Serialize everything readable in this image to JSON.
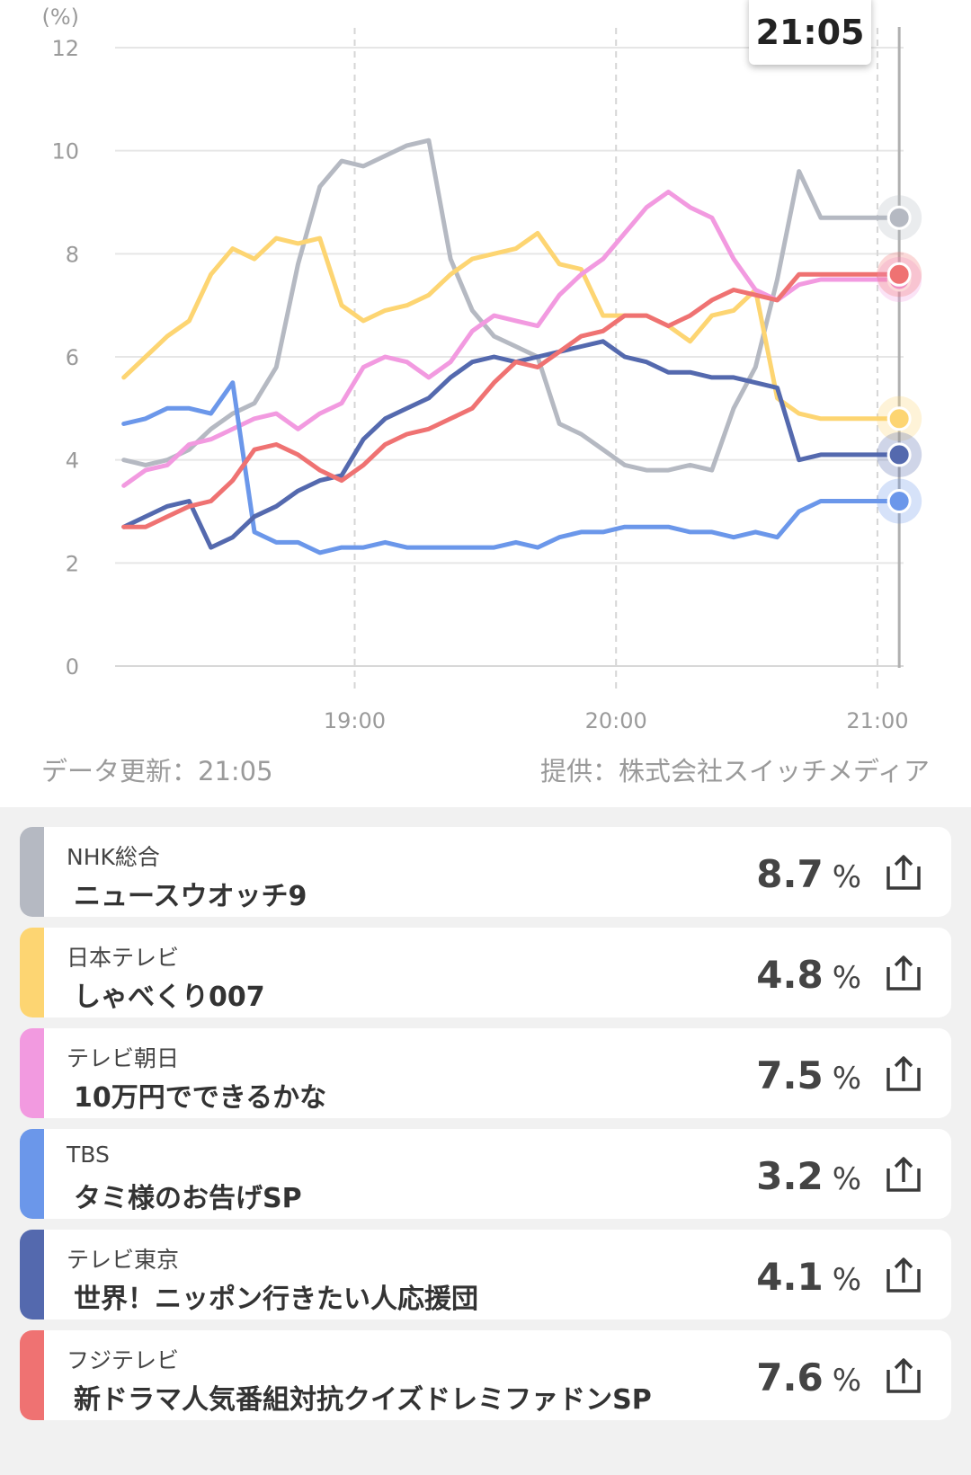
{
  "tooltip_time": "21:05",
  "footer": {
    "updated": "データ更新：21:05",
    "provider": "提供：株式会社スイッチメディア"
  },
  "chart_data": {
    "type": "line",
    "ylabel": "(%)",
    "ylim": [
      0,
      12
    ],
    "yticks": [
      "0",
      "2",
      "4",
      "6",
      "8",
      "10",
      "12"
    ],
    "xlim_minutes": [
      1085,
      1266
    ],
    "xticks": [
      {
        "label": "19:00",
        "minute": 1140
      },
      {
        "label": "20:00",
        "minute": 1200
      },
      {
        "label": "21:00",
        "minute": 1260
      }
    ],
    "cursor_minute": 1265,
    "x_minutes": [
      1087,
      1092,
      1097,
      1102,
      1107,
      1112,
      1117,
      1122,
      1127,
      1132,
      1137,
      1142,
      1147,
      1152,
      1157,
      1162,
      1167,
      1172,
      1177,
      1182,
      1187,
      1192,
      1197,
      1202,
      1207,
      1212,
      1217,
      1222,
      1227,
      1232,
      1237,
      1242,
      1247,
      1252,
      1257,
      1260,
      1262,
      1265
    ],
    "series": [
      {
        "name": "NHK総合",
        "color": "#b5b9c2",
        "values": [
          4.0,
          3.9,
          4.0,
          4.2,
          4.6,
          4.9,
          5.1,
          5.8,
          7.8,
          9.3,
          9.8,
          9.7,
          9.9,
          10.1,
          10.2,
          7.9,
          6.9,
          6.4,
          6.2,
          6.0,
          4.7,
          4.5,
          4.2,
          3.9,
          3.8,
          3.8,
          3.9,
          3.8,
          5.0,
          5.8,
          7.5,
          9.6,
          8.7,
          8.7,
          8.7,
          8.7,
          8.7,
          8.7
        ]
      },
      {
        "name": "日本テレビ",
        "color": "#fdd572",
        "values": [
          5.6,
          6.0,
          6.4,
          6.7,
          7.6,
          8.1,
          7.9,
          8.3,
          8.2,
          8.3,
          7.0,
          6.7,
          6.9,
          7.0,
          7.2,
          7.6,
          7.9,
          8.0,
          8.1,
          8.4,
          7.8,
          7.7,
          6.8,
          6.8,
          6.8,
          6.6,
          6.3,
          6.8,
          6.9,
          7.3,
          5.2,
          4.9,
          4.8,
          4.8,
          4.8,
          4.8,
          4.8,
          4.8
        ]
      },
      {
        "name": "テレビ朝日",
        "color": "#f29ae0",
        "values": [
          3.5,
          3.8,
          3.9,
          4.3,
          4.4,
          4.6,
          4.8,
          4.9,
          4.6,
          4.9,
          5.1,
          5.8,
          6.0,
          5.9,
          5.6,
          5.9,
          6.5,
          6.8,
          6.7,
          6.6,
          7.2,
          7.6,
          7.9,
          8.4,
          8.9,
          9.2,
          8.9,
          8.7,
          7.9,
          7.3,
          7.1,
          7.4,
          7.5,
          7.5,
          7.5,
          7.5,
          7.5,
          7.5
        ]
      },
      {
        "name": "TBS",
        "color": "#6b97ea",
        "values": [
          4.7,
          4.8,
          5.0,
          5.0,
          4.9,
          5.5,
          2.6,
          2.4,
          2.4,
          2.2,
          2.3,
          2.3,
          2.4,
          2.3,
          2.3,
          2.3,
          2.3,
          2.3,
          2.4,
          2.3,
          2.5,
          2.6,
          2.6,
          2.7,
          2.7,
          2.7,
          2.6,
          2.6,
          2.5,
          2.6,
          2.5,
          3.0,
          3.2,
          3.2,
          3.2,
          3.2,
          3.2,
          3.2
        ]
      },
      {
        "name": "テレビ東京",
        "color": "#5469ae",
        "values": [
          2.7,
          2.9,
          3.1,
          3.2,
          2.3,
          2.5,
          2.9,
          3.1,
          3.4,
          3.6,
          3.7,
          4.4,
          4.8,
          5.0,
          5.2,
          5.6,
          5.9,
          6.0,
          5.9,
          6.0,
          6.1,
          6.2,
          6.3,
          6.0,
          5.9,
          5.7,
          5.7,
          5.6,
          5.6,
          5.5,
          5.4,
          4.0,
          4.1,
          4.1,
          4.1,
          4.1,
          4.1,
          4.1
        ]
      },
      {
        "name": "フジテレビ",
        "color": "#ef7272",
        "values": [
          2.7,
          2.7,
          2.9,
          3.1,
          3.2,
          3.6,
          4.2,
          4.3,
          4.1,
          3.8,
          3.6,
          3.9,
          4.3,
          4.5,
          4.6,
          4.8,
          5.0,
          5.5,
          5.9,
          5.8,
          6.1,
          6.4,
          6.5,
          6.8,
          6.8,
          6.6,
          6.8,
          7.1,
          7.3,
          7.2,
          7.1,
          7.6,
          7.6,
          7.6,
          7.6,
          7.6,
          7.6,
          7.6
        ]
      }
    ]
  },
  "channels": [
    {
      "station": "NHK総合",
      "program": "ニュースウオッチ9",
      "rating": "8.7",
      "unit": "%",
      "color": "#b5b9c2"
    },
    {
      "station": "日本テレビ",
      "program": "しゃべくり007",
      "rating": "4.8",
      "unit": "%",
      "color": "#fdd572"
    },
    {
      "station": "テレビ朝日",
      "program": "10万円でできるかな",
      "rating": "7.5",
      "unit": "%",
      "color": "#f29ae0"
    },
    {
      "station": "TBS",
      "program": "タミ様のお告げSP",
      "rating": "3.2",
      "unit": "%",
      "color": "#6b97ea"
    },
    {
      "station": "テレビ東京",
      "program": "世界！ニッポン行きたい人応援団",
      "rating": "4.1",
      "unit": "%",
      "color": "#5469ae"
    },
    {
      "station": "フジテレビ",
      "program": "新ドラマ人気番組対抗クイズドレミファドンSP",
      "rating": "7.6",
      "unit": "%",
      "color": "#ef7272"
    }
  ],
  "icons": {
    "share": "share-icon"
  }
}
